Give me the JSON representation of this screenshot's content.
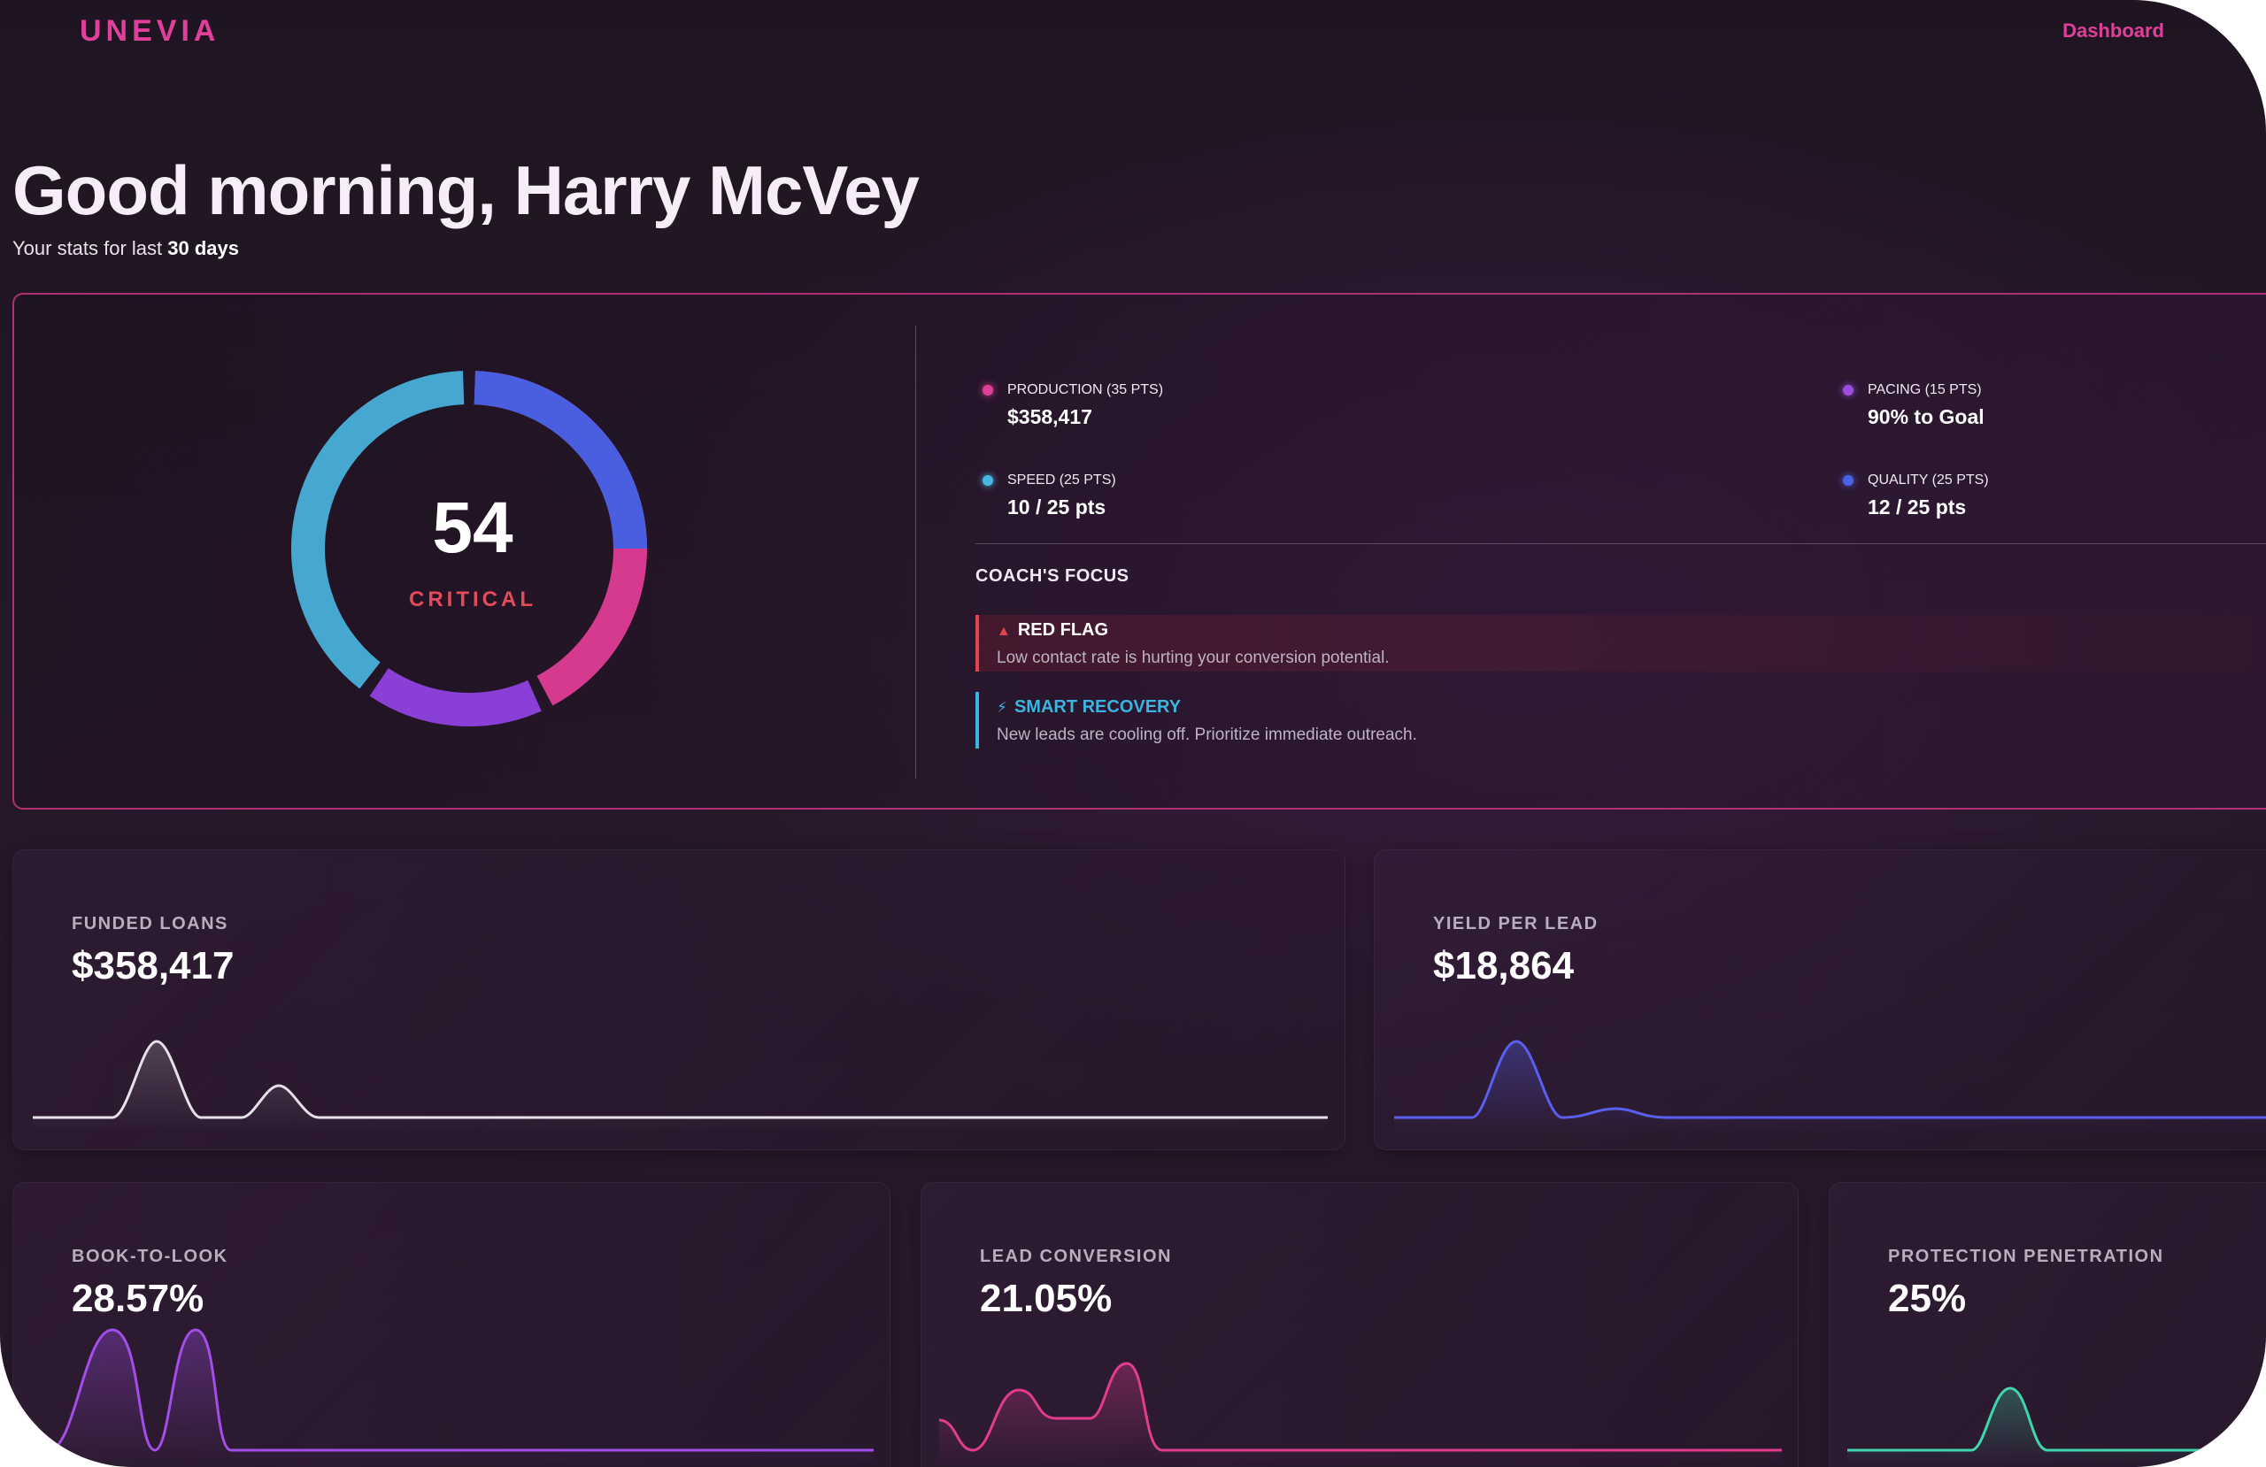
{
  "header": {
    "brand": "UNEVIA",
    "nav_dashboard": "Dashboard"
  },
  "greeting": {
    "title": "Good morning, Harry McVey",
    "subtitle_prefix": "Your stats for last ",
    "subtitle_emphasis": "30 days"
  },
  "score": {
    "value": "54",
    "status": "CRITICAL",
    "status_color": "#e54a5b",
    "segments": [
      {
        "name": "production",
        "color": "#d63a8f"
      },
      {
        "name": "pacing",
        "color": "#8a3fd6"
      },
      {
        "name": "speed",
        "color": "#46a8d0"
      },
      {
        "name": "quality",
        "color": "#4a5fe0"
      }
    ]
  },
  "metrics": [
    {
      "label": "PRODUCTION (35 PTS)",
      "value": "$358,417",
      "color": "#e0409a"
    },
    {
      "label": "PACING (15 PTS)",
      "value": "90% to Goal",
      "color": "#9a4de0"
    },
    {
      "label": "SPEED (25 PTS)",
      "value": "10 / 25 pts",
      "color": "#49b8e0"
    },
    {
      "label": "QUALITY (25 PTS)",
      "value": "12 / 25 pts",
      "color": "#4a62e6"
    }
  ],
  "coach": {
    "title": "COACH'S FOCUS",
    "red_flag_icon": "warning-triangle-icon",
    "red_flag_title": "RED FLAG",
    "red_flag_text": "Low contact rate is hurting your conversion potential.",
    "smart_icon": "lightning-bolt-icon",
    "smart_title": "SMART RECOVERY",
    "smart_text": "New leads are cooling off. Prioritize immediate outreach."
  },
  "cards": {
    "funded_loans": {
      "label": "FUNDED LOANS",
      "value": "$358,417",
      "color": "#e6e1e8"
    },
    "yield_per_lead": {
      "label": "YIELD PER LEAD",
      "value": "$18,864",
      "color": "#5a5ff0"
    },
    "book_to_look": {
      "label": "BOOK-TO-LOOK",
      "value": "28.57%",
      "color": "#a34ee8"
    },
    "lead_conversion": {
      "label": "LEAD CONVERSION",
      "value": "21.05%",
      "color": "#e23c8e"
    },
    "protection_penetration": {
      "label": "PROTECTION PENETRATION",
      "value": "25%",
      "color": "#3fd6ae"
    }
  }
}
